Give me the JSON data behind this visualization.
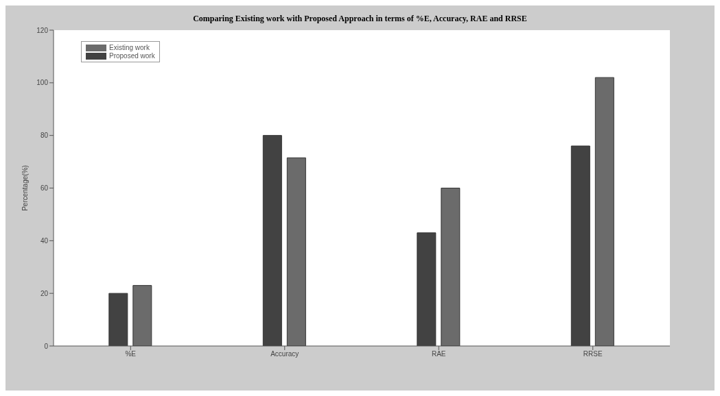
{
  "chart_data": {
    "type": "bar",
    "title": "Comparing Existing work with Proposed Approach in terms of %E, Accuracy, RAE and RRSE",
    "ylabel": "Percentage(%)",
    "categories": [
      "%E",
      "Accuracy",
      "RAE",
      "RRSE"
    ],
    "series": [
      {
        "name": "Existing work",
        "color": "#6b6b6b",
        "values": [
          23,
          71.5,
          60,
          102
        ]
      },
      {
        "name": "Proposed work",
        "color": "#424242",
        "values": [
          20,
          80,
          43,
          76
        ]
      }
    ],
    "ylim": [
      0,
      120
    ],
    "yticks": [
      0,
      20,
      40,
      60,
      80,
      100,
      120
    ],
    "grid": false,
    "legend": "top left"
  }
}
